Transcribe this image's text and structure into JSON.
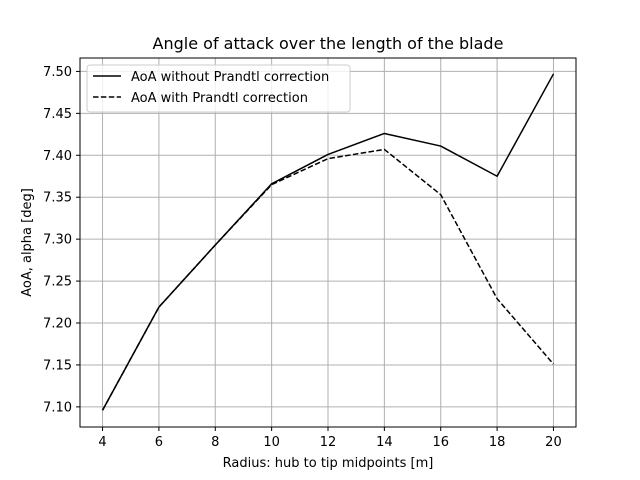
{
  "chart_data": {
    "type": "line",
    "title": "Angle of attack over the length of the blade",
    "xlabel": "Radius: hub to tip midpoints [m]",
    "ylabel": "AoA, alpha [deg]",
    "x": [
      4,
      6,
      8,
      10,
      12,
      14,
      16,
      18,
      20
    ],
    "xlim": [
      3.2,
      20.8
    ],
    "ylim": [
      7.076,
      7.516
    ],
    "xticks": [
      4,
      6,
      8,
      10,
      12,
      14,
      16,
      18,
      20
    ],
    "yticks": [
      7.1,
      7.15,
      7.2,
      7.25,
      7.3,
      7.35,
      7.4,
      7.45,
      7.5
    ],
    "xtick_labels": [
      "4",
      "6",
      "8",
      "10",
      "12",
      "14",
      "16",
      "18",
      "20"
    ],
    "ytick_labels": [
      "7.10",
      "7.15",
      "7.20",
      "7.25",
      "7.30",
      "7.35",
      "7.40",
      "7.45",
      "7.50"
    ],
    "grid": true,
    "legend_position": "top-left",
    "series": [
      {
        "name": "AoA without Prandtl correction",
        "style": "solid",
        "color": "#000000",
        "values": [
          7.096,
          7.219,
          7.293,
          7.366,
          7.401,
          7.426,
          7.411,
          7.375,
          7.497
        ]
      },
      {
        "name": "AoA with Prandtl correction",
        "style": "dashed",
        "color": "#000000",
        "values": [
          7.096,
          7.219,
          7.293,
          7.365,
          7.396,
          7.407,
          7.353,
          7.229,
          7.151
        ]
      }
    ]
  }
}
